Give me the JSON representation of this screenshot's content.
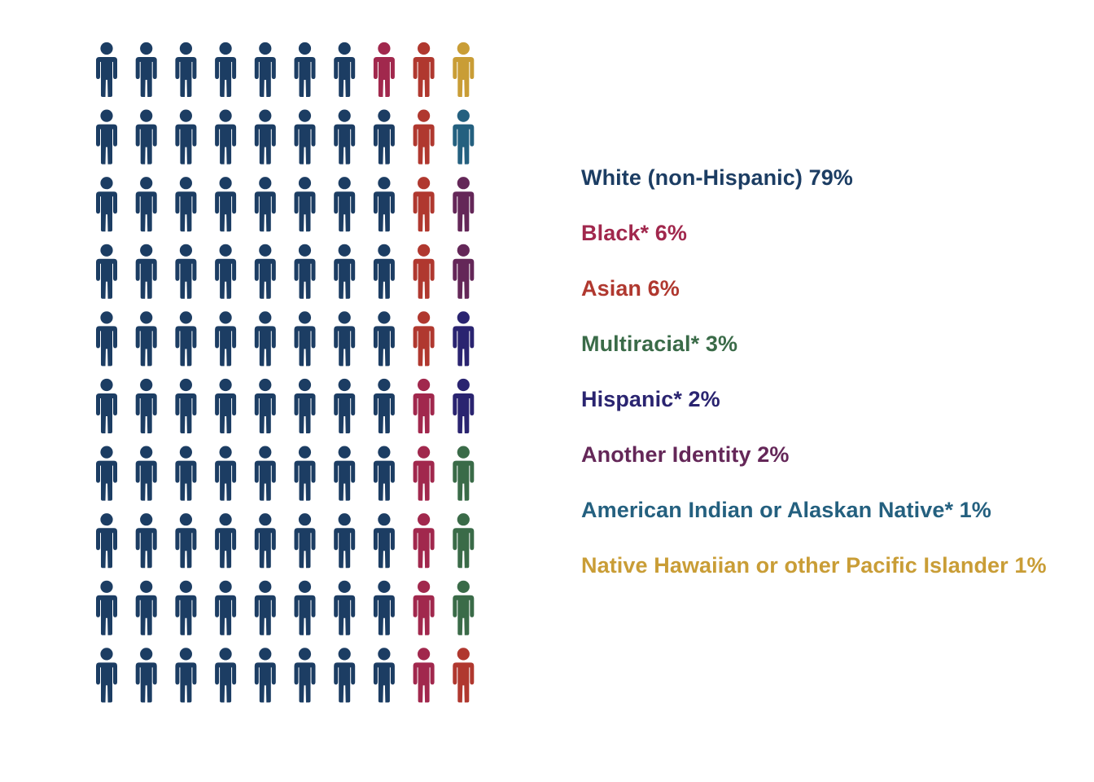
{
  "chart_data": {
    "type": "pictogram",
    "grid": {
      "columns": 10,
      "rows": 10,
      "unit": "1 icon = 1%"
    },
    "series": [
      {
        "name": "White (non-Hispanic)",
        "value": 79,
        "label": "White (non-Hispanic) 79%",
        "color": "#1c3d63"
      },
      {
        "name": "Black*",
        "value": 6,
        "label": "Black* 6%",
        "color": "#a1284d"
      },
      {
        "name": "Asian",
        "value": 6,
        "label": "Asian 6%",
        "color": "#b0382f"
      },
      {
        "name": "Multiracial*",
        "value": 3,
        "label": "Multiracial* 3%",
        "color": "#3a6b48"
      },
      {
        "name": "Hispanic*",
        "value": 2,
        "label": "Hispanic* 2%",
        "color": "#2a2470"
      },
      {
        "name": "Another Identity",
        "value": 2,
        "label": "Another Identity 2%",
        "color": "#642758"
      },
      {
        "name": "American Indian or Alaskan Native*",
        "value": 1,
        "label": "American Indian or Alaskan Native* 1%",
        "color": "#24607f"
      },
      {
        "name": "Native Hawaiian or other Pacific Islander",
        "value": 1,
        "label": "Native Hawaiian or other Pacific Islander 1%",
        "color": "#c99d36"
      }
    ],
    "cells": [
      [
        "White (non-Hispanic)",
        "White (non-Hispanic)",
        "White (non-Hispanic)",
        "White (non-Hispanic)",
        "White (non-Hispanic)",
        "White (non-Hispanic)",
        "White (non-Hispanic)",
        "Black*",
        "Asian",
        "Native Hawaiian or other Pacific Islander"
      ],
      [
        "White (non-Hispanic)",
        "White (non-Hispanic)",
        "White (non-Hispanic)",
        "White (non-Hispanic)",
        "White (non-Hispanic)",
        "White (non-Hispanic)",
        "White (non-Hispanic)",
        "White (non-Hispanic)",
        "Asian",
        "American Indian or Alaskan Native*"
      ],
      [
        "White (non-Hispanic)",
        "White (non-Hispanic)",
        "White (non-Hispanic)",
        "White (non-Hispanic)",
        "White (non-Hispanic)",
        "White (non-Hispanic)",
        "White (non-Hispanic)",
        "White (non-Hispanic)",
        "Asian",
        "Another Identity"
      ],
      [
        "White (non-Hispanic)",
        "White (non-Hispanic)",
        "White (non-Hispanic)",
        "White (non-Hispanic)",
        "White (non-Hispanic)",
        "White (non-Hispanic)",
        "White (non-Hispanic)",
        "White (non-Hispanic)",
        "Asian",
        "Another Identity"
      ],
      [
        "White (non-Hispanic)",
        "White (non-Hispanic)",
        "White (non-Hispanic)",
        "White (non-Hispanic)",
        "White (non-Hispanic)",
        "White (non-Hispanic)",
        "White (non-Hispanic)",
        "White (non-Hispanic)",
        "Asian",
        "Hispanic*"
      ],
      [
        "White (non-Hispanic)",
        "White (non-Hispanic)",
        "White (non-Hispanic)",
        "White (non-Hispanic)",
        "White (non-Hispanic)",
        "White (non-Hispanic)",
        "White (non-Hispanic)",
        "White (non-Hispanic)",
        "Black*",
        "Hispanic*"
      ],
      [
        "White (non-Hispanic)",
        "White (non-Hispanic)",
        "White (non-Hispanic)",
        "White (non-Hispanic)",
        "White (non-Hispanic)",
        "White (non-Hispanic)",
        "White (non-Hispanic)",
        "White (non-Hispanic)",
        "Black*",
        "Multiracial*"
      ],
      [
        "White (non-Hispanic)",
        "White (non-Hispanic)",
        "White (non-Hispanic)",
        "White (non-Hispanic)",
        "White (non-Hispanic)",
        "White (non-Hispanic)",
        "White (non-Hispanic)",
        "White (non-Hispanic)",
        "Black*",
        "Multiracial*"
      ],
      [
        "White (non-Hispanic)",
        "White (non-Hispanic)",
        "White (non-Hispanic)",
        "White (non-Hispanic)",
        "White (non-Hispanic)",
        "White (non-Hispanic)",
        "White (non-Hispanic)",
        "White (non-Hispanic)",
        "Black*",
        "Multiracial*"
      ],
      [
        "White (non-Hispanic)",
        "White (non-Hispanic)",
        "White (non-Hispanic)",
        "White (non-Hispanic)",
        "White (non-Hispanic)",
        "White (non-Hispanic)",
        "White (non-Hispanic)",
        "White (non-Hispanic)",
        "Black*",
        "Asian"
      ]
    ],
    "icon": "person-icon",
    "legend_position": "right"
  }
}
